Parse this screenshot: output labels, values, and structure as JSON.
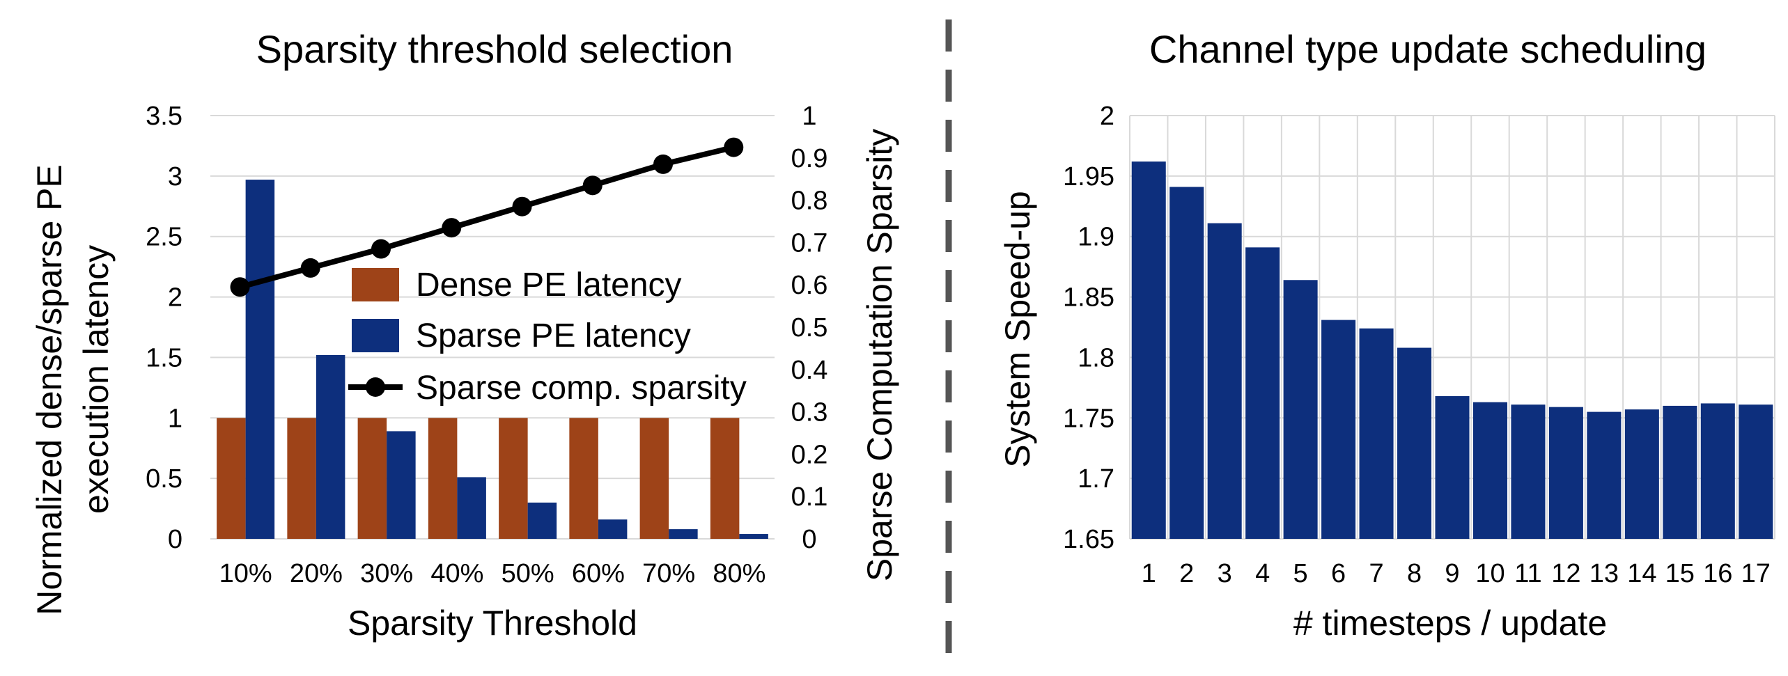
{
  "chart_data": [
    {
      "type": "bar",
      "title": "Sparsity threshold selection",
      "xlabel": "Sparsity Threshold",
      "ylabel": "Normalized dense/sparse PE execution latency",
      "ylabel_lines": [
        "Normalized dense/sparse PE",
        "execution latency"
      ],
      "y2label": "Sparse Computation Sparsity",
      "categories": [
        "10%",
        "20%",
        "30%",
        "40%",
        "50%",
        "60%",
        "70%",
        "80%"
      ],
      "ylim": [
        0,
        3.5
      ],
      "yticks": [
        "0",
        "0.5",
        "1",
        "1.5",
        "2",
        "2.5",
        "3",
        "3.5"
      ],
      "y2lim": [
        0,
        1
      ],
      "y2ticks": [
        "0",
        "0.1",
        "0.2",
        "0.3",
        "0.4",
        "0.5",
        "0.6",
        "0.7",
        "0.8",
        "0.9",
        "1"
      ],
      "grid": true,
      "legend_position": "center",
      "series": [
        {
          "name": "Dense PE latency",
          "type": "bar",
          "axis": "left",
          "color": "#9e4318",
          "values": [
            1,
            1,
            1,
            1,
            1,
            1,
            1,
            1
          ]
        },
        {
          "name": "Sparse PE latency",
          "type": "bar",
          "axis": "left",
          "color": "#0d2f7d",
          "values": [
            2.97,
            1.52,
            0.89,
            0.51,
            0.3,
            0.16,
            0.08,
            0.04
          ]
        },
        {
          "name": "Sparse comp. sparsity",
          "type": "line",
          "axis": "right",
          "color": "#000000",
          "values": [
            0.595,
            0.64,
            0.685,
            0.735,
            0.785,
            0.835,
            0.885,
            0.925
          ]
        }
      ]
    },
    {
      "type": "bar",
      "title": "Channel type update scheduling",
      "xlabel": "# timesteps / update",
      "ylabel": "System Speed-up",
      "categories": [
        "1",
        "2",
        "3",
        "4",
        "5",
        "6",
        "7",
        "8",
        "9",
        "10",
        "11",
        "12",
        "13",
        "14",
        "15",
        "16",
        "17"
      ],
      "ylim": [
        1.65,
        2
      ],
      "yticks": [
        "1.65",
        "1.7",
        "1.75",
        "1.8",
        "1.85",
        "1.9",
        "1.95",
        "2"
      ],
      "grid": true,
      "series": [
        {
          "color": "#0d2f7d",
          "values": [
            1.962,
            1.941,
            1.911,
            1.891,
            1.864,
            1.831,
            1.824,
            1.808,
            1.768,
            1.763,
            1.761,
            1.759,
            1.755,
            1.757,
            1.76,
            1.762,
            1.761
          ]
        }
      ]
    }
  ]
}
